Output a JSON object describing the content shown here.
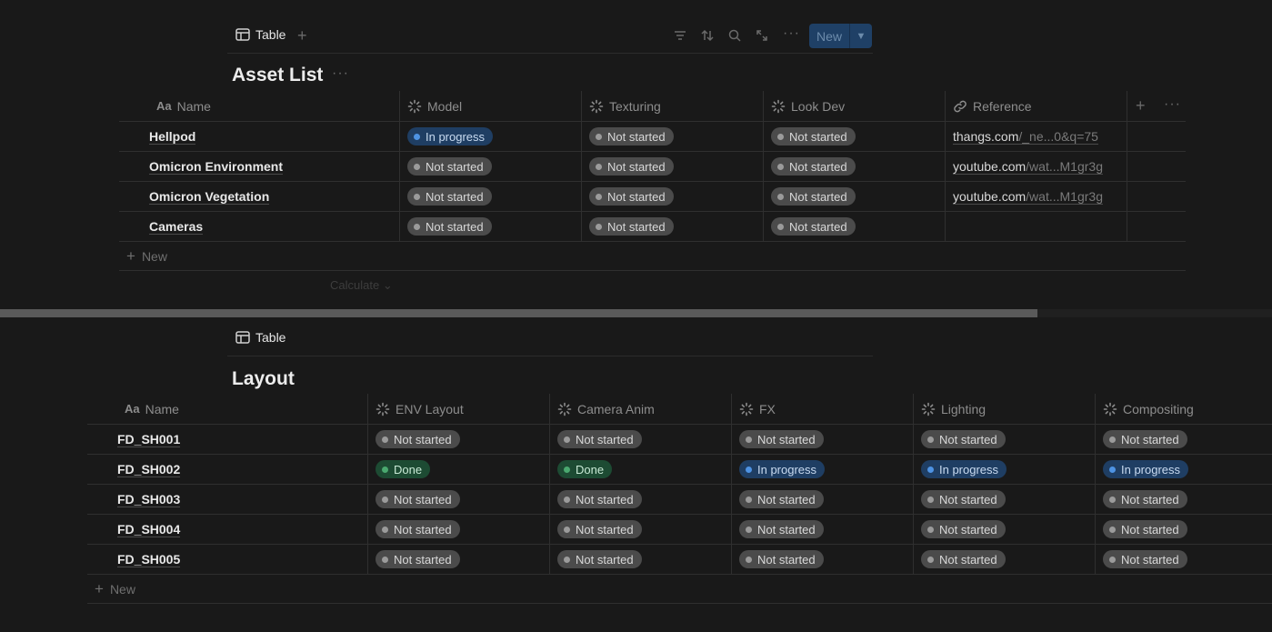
{
  "asset_view": {
    "tab_label": "Table",
    "new_button_label": "New",
    "title": "Asset List",
    "columns": [
      "Name",
      "Model",
      "Texturing",
      "Look Dev",
      "Reference"
    ],
    "name_prefix": "Aa",
    "rows": [
      {
        "name": "Hellpod",
        "model": "In progress",
        "texturing": "Not started",
        "lookdev": "Not started",
        "ref_host": "thangs.com",
        "ref_path": "/_ne...0&q=75"
      },
      {
        "name": "Omicron Environment",
        "model": "Not started",
        "texturing": "Not started",
        "lookdev": "Not started",
        "ref_host": "youtube.com",
        "ref_path": "/wat...M1gr3g"
      },
      {
        "name": "Omicron Vegetation",
        "model": "Not started",
        "texturing": "Not started",
        "lookdev": "Not started",
        "ref_host": "youtube.com",
        "ref_path": "/wat...M1gr3g"
      },
      {
        "name": "Cameras",
        "model": "Not started",
        "texturing": "Not started",
        "lookdev": "Not started",
        "ref_host": "",
        "ref_path": ""
      }
    ],
    "new_row_label": "New",
    "calculate_label": "Calculate"
  },
  "layout_view": {
    "tab_label": "Table",
    "title": "Layout",
    "name_prefix": "Aa",
    "columns": [
      "Name",
      "ENV Layout",
      "Camera Anim",
      "FX",
      "Lighting",
      "Compositing"
    ],
    "rows": [
      {
        "name": "FD_SH001",
        "cells": [
          "Not started",
          "Not started",
          "Not started",
          "Not started",
          "Not started"
        ]
      },
      {
        "name": "FD_SH002",
        "cells": [
          "Done",
          "Done",
          "In progress",
          "In progress",
          "In progress"
        ]
      },
      {
        "name": "FD_SH003",
        "cells": [
          "Not started",
          "Not started",
          "Not started",
          "Not started",
          "Not started"
        ]
      },
      {
        "name": "FD_SH004",
        "cells": [
          "Not started",
          "Not started",
          "Not started",
          "Not started",
          "Not started"
        ]
      },
      {
        "name": "FD_SH005",
        "cells": [
          "Not started",
          "Not started",
          "Not started",
          "Not started",
          "Not started"
        ]
      }
    ],
    "new_row_label": "New"
  },
  "status_colors": {
    "Not started": "#4b4b4b",
    "In progress": "#1f3e63",
    "Done": "#1d4b33"
  },
  "icons": [
    "table-icon",
    "filter-icon",
    "sort-icon",
    "search-icon",
    "expand-icon",
    "more-icon",
    "status-icon",
    "link-icon",
    "plus-icon"
  ]
}
